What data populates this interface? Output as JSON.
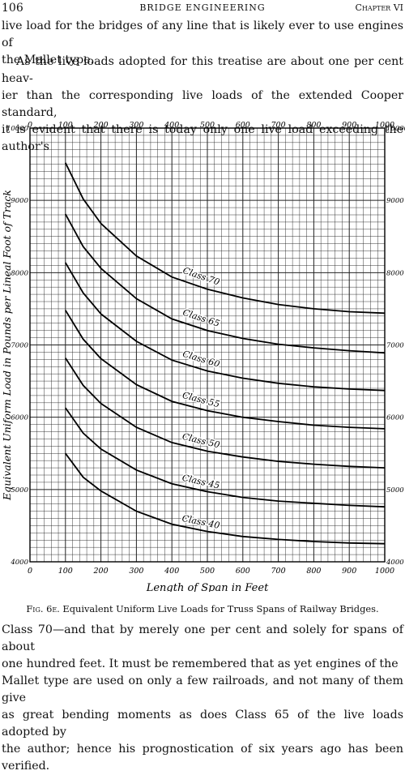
{
  "header": {
    "page_number": "106",
    "running_title": "BRIDGE ENGINEERING",
    "chapter": "Chapter VI"
  },
  "para1_lines": [
    "live load for the bridges of any line that is likely ever to use engines of",
    "the Mallet type."
  ],
  "para2_lines": [
    "As the live loads adopted for this treatise are about one per cent heav-",
    "ier than the corresponding live loads of the extended Cooper standard,",
    "it is evident that there is today only one live load exceeding the author's"
  ],
  "chart_data": {
    "type": "line",
    "xlabel": "Length of Span in Feet",
    "ylabel": "Equivalent Uniform Load in Pounds per Lineal Foot of Track",
    "xlim": [
      0,
      1000
    ],
    "ylim": [
      4000,
      10000
    ],
    "x_ticks": [
      "0",
      "100",
      "200",
      "300",
      "400",
      "500",
      "600",
      "700",
      "800",
      "900",
      "1000"
    ],
    "y_ticks": [
      "4000",
      "5000",
      "6000",
      "7000",
      "8000",
      "9000",
      "10000"
    ],
    "grid": true,
    "series": [
      {
        "name": "Class 70",
        "label_x": 430,
        "x": [
          100,
          150,
          200,
          300,
          400,
          500,
          600,
          700,
          800,
          900,
          1000
        ],
        "y": [
          9520,
          9020,
          8680,
          8230,
          7940,
          7770,
          7650,
          7560,
          7500,
          7460,
          7440
        ]
      },
      {
        "name": "Class 65",
        "label_x": 430,
        "x": [
          100,
          150,
          200,
          300,
          400,
          500,
          600,
          700,
          800,
          900,
          1000
        ],
        "y": [
          8810,
          8360,
          8060,
          7640,
          7360,
          7200,
          7090,
          7010,
          6960,
          6920,
          6890
        ]
      },
      {
        "name": "Class 60",
        "label_x": 430,
        "x": [
          100,
          150,
          200,
          300,
          400,
          500,
          600,
          700,
          800,
          900,
          1000
        ],
        "y": [
          8140,
          7720,
          7430,
          7050,
          6790,
          6640,
          6540,
          6470,
          6420,
          6390,
          6370
        ]
      },
      {
        "name": "Class 55",
        "label_x": 430,
        "x": [
          100,
          150,
          200,
          300,
          400,
          500,
          600,
          700,
          800,
          900,
          1000
        ],
        "y": [
          7480,
          7080,
          6810,
          6450,
          6220,
          6090,
          6000,
          5940,
          5890,
          5860,
          5840
        ]
      },
      {
        "name": "Class 50",
        "label_x": 430,
        "x": [
          100,
          150,
          200,
          300,
          400,
          500,
          600,
          700,
          800,
          900,
          1000
        ],
        "y": [
          6820,
          6440,
          6190,
          5860,
          5650,
          5530,
          5450,
          5390,
          5350,
          5320,
          5300
        ]
      },
      {
        "name": "Class 45",
        "label_x": 430,
        "x": [
          100,
          150,
          200,
          300,
          400,
          500,
          600,
          700,
          800,
          900,
          1000
        ],
        "y": [
          6130,
          5780,
          5560,
          5270,
          5080,
          4970,
          4890,
          4840,
          4810,
          4780,
          4760
        ]
      },
      {
        "name": "Class 40",
        "label_x": 430,
        "x": [
          100,
          150,
          200,
          300,
          400,
          500,
          600,
          700,
          800,
          900,
          1000
        ],
        "y": [
          5500,
          5170,
          4980,
          4700,
          4520,
          4420,
          4350,
          4310,
          4280,
          4260,
          4250
        ]
      }
    ]
  },
  "caption": {
    "fig_no": "Fig. 6e.",
    "text": "Equivalent Uniform Live Loads for Truss Spans of Railway Bridges."
  },
  "para3_lines": [
    "Class 70—and that by merely one per cent and solely for spans of about",
    "one hundred feet.  It must be remembered that as yet engines of the",
    "Mallet type are used on only a few railroads, and not many of them give",
    "as great bending moments as does Class 65 of the live loads adopted by",
    "the author; hence his prognostication of six years ago has been verified."
  ]
}
